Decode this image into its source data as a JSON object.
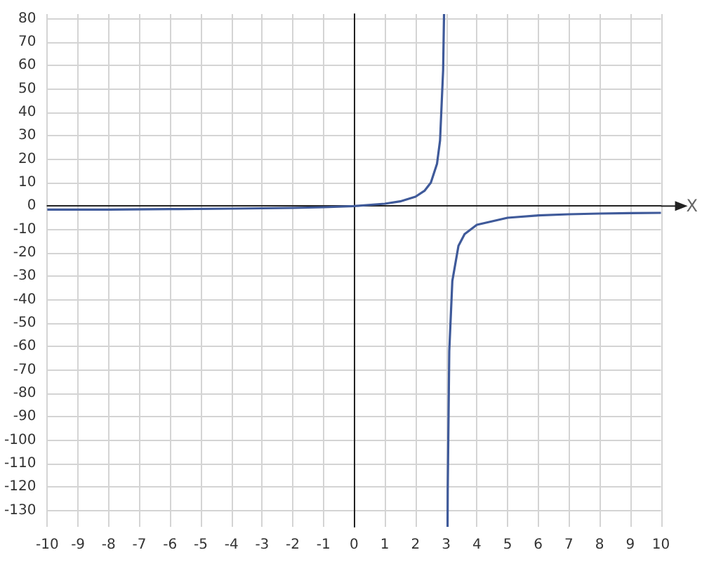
{
  "chart_data": {
    "type": "line",
    "xlabel": "X",
    "xlim": [
      -10,
      10
    ],
    "xticks": [
      -10,
      -9,
      -8,
      -7,
      -6,
      -5,
      -4,
      -3,
      -2,
      -1,
      0,
      1,
      2,
      3,
      4,
      5,
      6,
      7,
      8,
      9,
      10
    ],
    "ylim": [
      -137,
      82
    ],
    "yticks": [
      -130,
      -120,
      -110,
      -100,
      -90,
      -80,
      -70,
      -60,
      -50,
      -40,
      -30,
      -20,
      -10,
      0,
      10,
      20,
      30,
      40,
      50,
      60,
      70,
      80
    ],
    "grid": true,
    "marker": "none",
    "line_style": "solid",
    "series": [
      {
        "color": "#3f5a9a",
        "x": [
          -10,
          -8,
          -6,
          -4,
          -2,
          -1,
          0,
          1,
          1.5,
          2,
          2.3,
          2.5,
          2.7,
          2.8,
          2.9,
          2.93,
          3,
          3.045,
          3.05,
          3.1,
          3.2,
          3.4,
          3.6,
          4,
          5,
          6,
          7,
          8,
          9,
          10
        ],
        "values": [
          -1.5,
          -1.5,
          -1.3,
          -1.1,
          -0.8,
          -0.5,
          0,
          1,
          2,
          4,
          6.6,
          10,
          18,
          28,
          58,
          82,
          null,
          -137,
          -122,
          -62,
          -32,
          -17,
          -12,
          -8,
          -5,
          -4,
          -3.5,
          -3.2,
          -3,
          -2.9
        ]
      }
    ]
  }
}
